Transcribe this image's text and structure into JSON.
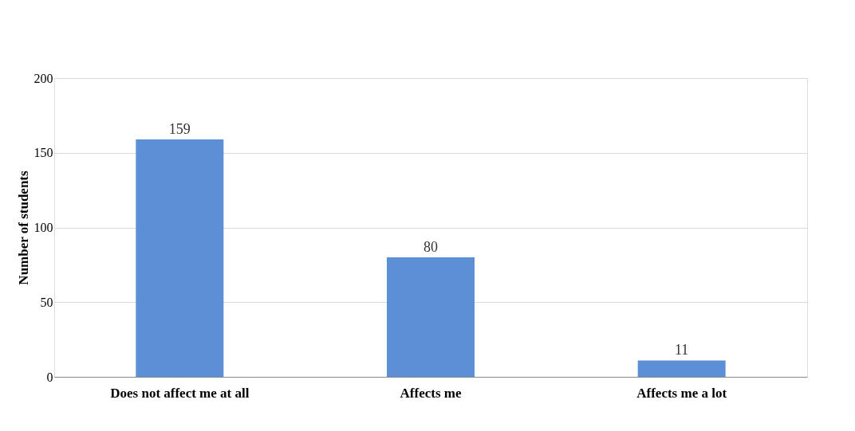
{
  "chart_data": {
    "type": "bar",
    "ylabel": "Number of students",
    "categories": [
      "Does not affect me at all",
      "Affects me",
      "Affects me a lot"
    ],
    "values": [
      159,
      80,
      11
    ],
    "color": "#5b8fd6",
    "ylim": [
      0,
      200
    ],
    "yticks": [
      0,
      50,
      100,
      150,
      200
    ],
    "grid": "y",
    "data_labels": true
  }
}
